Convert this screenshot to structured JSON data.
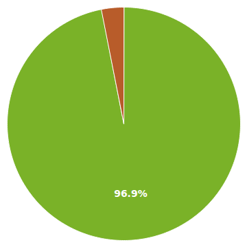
{
  "chart_data": {
    "type": "pie",
    "values": [
      96.9,
      3.1
    ],
    "colors": [
      "#7ab228",
      "#b85c2a"
    ],
    "data_labels": true,
    "value_labels": [
      "96.9%",
      null
    ]
  }
}
